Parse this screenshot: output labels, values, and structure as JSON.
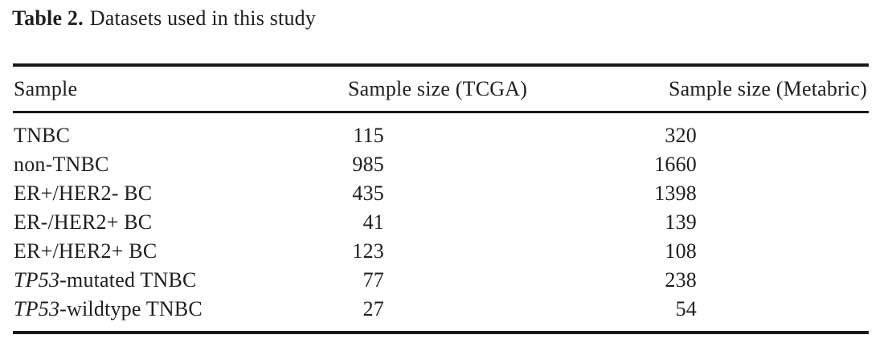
{
  "caption": {
    "label": "Table 2.",
    "text": "Datasets used in this study"
  },
  "table": {
    "columns": [
      "Sample",
      "Sample size (TCGA)",
      "Sample size (Metabric)"
    ],
    "rows": [
      {
        "sample_italic": "",
        "sample": "TNBC",
        "tcga": "115",
        "metabric": "320"
      },
      {
        "sample_italic": "",
        "sample": "non-TNBC",
        "tcga": "985",
        "metabric": "1660"
      },
      {
        "sample_italic": "",
        "sample": "ER+/HER2- BC",
        "tcga": "435",
        "metabric": "1398"
      },
      {
        "sample_italic": "",
        "sample": "ER-/HER2+ BC",
        "tcga": "41",
        "metabric": "139"
      },
      {
        "sample_italic": "",
        "sample": "ER+/HER2+ BC",
        "tcga": "123",
        "metabric": "108"
      },
      {
        "sample_italic": "TP53",
        "sample": "-mutated TNBC",
        "tcga": "77",
        "metabric": "238"
      },
      {
        "sample_italic": "TP53",
        "sample": "-wildtype TNBC",
        "tcga": "27",
        "metabric": "54"
      }
    ]
  },
  "colors": {
    "text": "#1e1e1e",
    "rule": "#1a1a1a",
    "background": "#ffffff"
  }
}
